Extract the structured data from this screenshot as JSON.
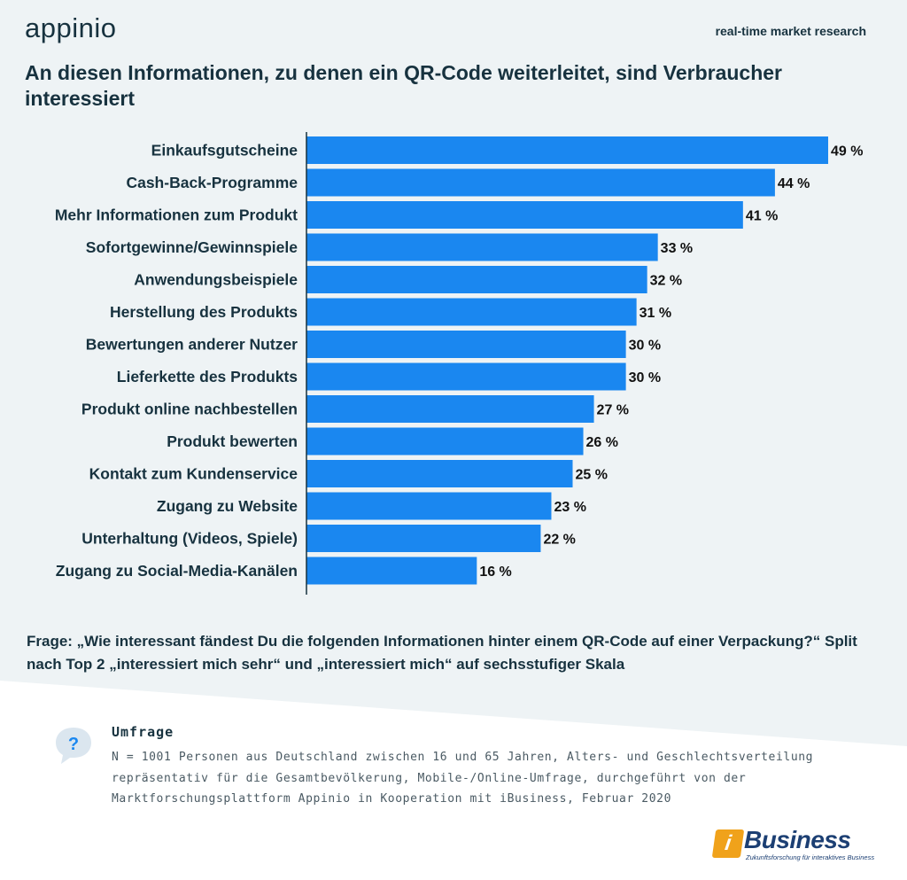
{
  "brand": {
    "logo_text": "appinio",
    "tagline": "real-time market research"
  },
  "title": "An diesen Informationen, zu denen ein QR-Code weiterleitet, sind Verbraucher interessiert",
  "colors": {
    "bar": "#1a87f0",
    "background_top": "#eef3f5",
    "text_dark": "#17323f",
    "brand_orange": "#f0a21b",
    "brand_blue": "#1c3f73"
  },
  "chart_data": {
    "type": "bar",
    "orientation": "horizontal",
    "title": "An diesen Informationen, zu denen ein QR-Code weiterleitet, sind Verbraucher interessiert",
    "categories": [
      "Einkaufsgutscheine",
      "Cash-Back-Programme",
      "Mehr Informationen zum Produkt",
      "Sofortgewinne/Gewinnspiele",
      "Anwendungsbeispiele",
      "Herstellung des Produkts",
      "Bewertungen anderer Nutzer",
      "Lieferkette des Produkts",
      "Produkt online nachbestellen",
      "Produkt bewerten",
      "Kontakt zum Kundenservice",
      "Zugang zu Website",
      "Unterhaltung (Videos, Spiele)",
      "Zugang zu Social-Media-Kanälen"
    ],
    "values": [
      49,
      44,
      41,
      33,
      32,
      31,
      30,
      30,
      27,
      26,
      25,
      23,
      22,
      16
    ],
    "value_labels": [
      "49 %",
      "44 %",
      "41 %",
      "33 %",
      "32 %",
      "31 %",
      "30 %",
      "30 %",
      "27 %",
      "26 %",
      "25 %",
      "23 %",
      "22 %",
      "16 %"
    ],
    "xlabel": "",
    "ylabel": "",
    "xlim": [
      0,
      49
    ],
    "grid": false,
    "legend": "none"
  },
  "question": "Frage: „Wie interessant fändest Du die folgenden Informationen hinter einem QR-Code auf einer Verpackung?“ Split nach Top 2  „interessiert mich sehr“  und „interessiert mich“ auf sechsstufiger Skala",
  "survey": {
    "icon": "question-bubble-icon",
    "heading": "Umfrage",
    "text": "N = 1001 Personen aus Deutschland zwischen 16 und 65 Jahren, Alters- und Geschlechtsverteilung repräsentativ für die Gesamtbevölkerung, Mobile-/Online-Umfrage, durchgeführt von der Marktforschungsplattform Appinio in Kooperation mit iBusiness, Februar 2020"
  },
  "footer_logo": {
    "mark": "i",
    "name": "Business",
    "subtitle": "Zukunftsforschung für interaktives Business"
  }
}
